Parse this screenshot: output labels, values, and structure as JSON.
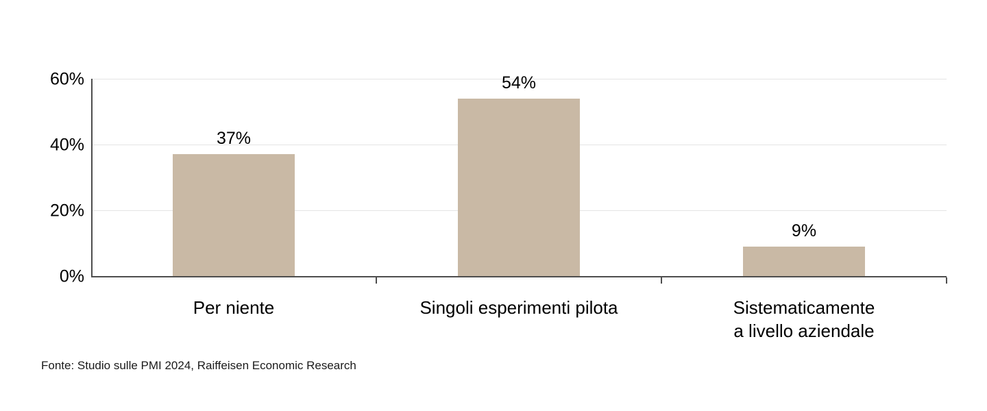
{
  "chart_data": {
    "type": "bar",
    "categories": [
      "Per niente",
      "Singoli esperimenti pilota",
      "Sistematicamente\na livello aziendale"
    ],
    "values": [
      37,
      54,
      9
    ],
    "value_labels": [
      "37%",
      "54%",
      "9%"
    ],
    "title": "",
    "xlabel": "",
    "ylabel": "",
    "ylim": [
      0,
      60
    ],
    "y_ticks": [
      0,
      20,
      40,
      60
    ],
    "y_tick_labels": [
      "0%",
      "20%",
      "40%",
      "60%"
    ],
    "grid": true,
    "legend": "none",
    "bar_color": "#c9b9a5",
    "axis_color": "#4d4d4d",
    "gridline_color": "#e4e4e4"
  },
  "footer": {
    "source": "Fonte: Studio sulle PMI 2024, Raiffeisen Economic Research"
  }
}
